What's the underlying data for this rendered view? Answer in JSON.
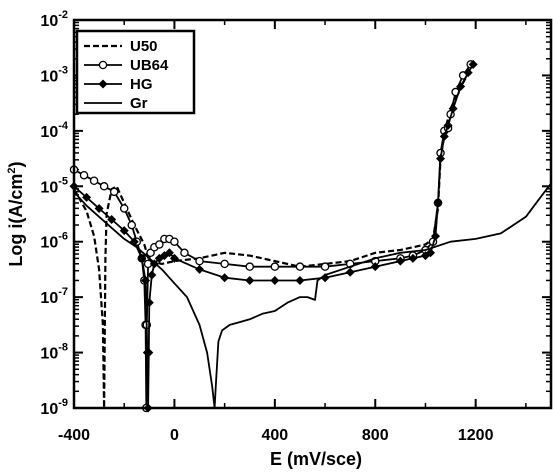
{
  "chart_data": {
    "type": "line",
    "xlabel": "E (mV/sce)",
    "ylabel_base": "Log i(A/cm",
    "ylabel_sup": "2",
    "ylabel_close": ")",
    "xlim": [
      -400,
      1500
    ],
    "ylim": [
      -9,
      -2
    ],
    "y_scale": "log10",
    "x_ticks": [
      -400,
      0,
      400,
      800,
      1200
    ],
    "x_tick_labels": [
      "-400",
      "0",
      "400",
      "800",
      "1200"
    ],
    "y_ticks": [
      -9,
      -8,
      -7,
      -6,
      -5,
      -4,
      -3,
      -2
    ],
    "y_tick_labels": [
      {
        "base": "10",
        "exp": "-9"
      },
      {
        "base": "10",
        "exp": "-8"
      },
      {
        "base": "10",
        "exp": "-7"
      },
      {
        "base": "10",
        "exp": "-6"
      },
      {
        "base": "10",
        "exp": "-5"
      },
      {
        "base": "10",
        "exp": "-4"
      },
      {
        "base": "10",
        "exp": "-3"
      },
      {
        "base": "10",
        "exp": "-2"
      }
    ],
    "grid": false,
    "legend_position": "top-left",
    "series": [
      {
        "name": "U50",
        "style": "dashed",
        "marker": "none",
        "x": [
          -400,
          -350,
          -320,
          -300,
          -285,
          -280,
          -278,
          -275,
          -270,
          -250,
          -230,
          -200,
          -160,
          -120,
          -100,
          -50,
          0,
          100,
          200,
          300,
          400,
          500,
          600,
          700,
          800,
          900,
          950,
          1000,
          1030,
          1050,
          1060,
          1080,
          1100,
          1130,
          1160,
          1190
        ],
        "y": [
          -5.05,
          -5.45,
          -5.9,
          -6.5,
          -7.5,
          -9.0,
          -8.0,
          -6.3,
          -5.5,
          -5.05,
          -5.0,
          -5.3,
          -5.7,
          -6.05,
          -6.35,
          -6.4,
          -6.35,
          -6.3,
          -6.2,
          -6.25,
          -6.35,
          -6.45,
          -6.4,
          -6.35,
          -6.2,
          -6.15,
          -6.1,
          -6.05,
          -5.95,
          -5.4,
          -4.5,
          -3.95,
          -3.6,
          -3.3,
          -3.05,
          -2.8
        ]
      },
      {
        "name": "UB64",
        "style": "solid",
        "marker": "open-circle",
        "x": [
          -400,
          -360,
          -320,
          -280,
          -240,
          -200,
          -170,
          -150,
          -130,
          -120,
          -115,
          -112,
          -110,
          -105,
          -95,
          -80,
          -60,
          -40,
          -20,
          0,
          40,
          100,
          200,
          300,
          400,
          500,
          600,
          700,
          800,
          900,
          950,
          1000,
          1030,
          1050,
          1060,
          1075,
          1090,
          1100,
          1120,
          1150,
          1180
        ],
        "y": [
          -4.7,
          -4.8,
          -4.9,
          -5.0,
          -5.1,
          -5.4,
          -5.7,
          -6.0,
          -6.3,
          -6.7,
          -7.5,
          -9.0,
          -7.5,
          -6.4,
          -6.2,
          -6.1,
          -6.05,
          -5.95,
          -5.95,
          -6.0,
          -6.2,
          -6.35,
          -6.4,
          -6.45,
          -6.45,
          -6.45,
          -6.45,
          -6.4,
          -6.35,
          -6.3,
          -6.25,
          -6.15,
          -6.0,
          -5.3,
          -4.4,
          -4.0,
          -3.95,
          -3.7,
          -3.3,
          -3.0,
          -2.8
        ]
      },
      {
        "name": "HG",
        "style": "solid",
        "marker": "filled-diamond",
        "x": [
          -400,
          -350,
          -300,
          -250,
          -200,
          -160,
          -130,
          -115,
          -108,
          -105,
          -102,
          -100,
          -90,
          -80,
          -60,
          -40,
          -20,
          0,
          100,
          200,
          300,
          400,
          500,
          600,
          700,
          800,
          900,
          950,
          1000,
          1020,
          1040,
          1050,
          1060,
          1075,
          1090,
          1110,
          1140,
          1170,
          1190
        ],
        "y": [
          -5.0,
          -5.2,
          -5.4,
          -5.6,
          -5.8,
          -6.0,
          -6.3,
          -6.7,
          -8.0,
          -9.0,
          -8.0,
          -7.1,
          -6.6,
          -6.4,
          -6.3,
          -6.25,
          -6.2,
          -6.3,
          -6.5,
          -6.65,
          -6.7,
          -6.7,
          -6.7,
          -6.65,
          -6.55,
          -6.45,
          -6.35,
          -6.3,
          -6.25,
          -6.2,
          -5.9,
          -5.3,
          -4.5,
          -4.1,
          -3.9,
          -3.6,
          -3.2,
          -2.95,
          -2.8
        ]
      },
      {
        "name": "Gr",
        "style": "solid",
        "marker": "none",
        "x": [
          -400,
          -350,
          -300,
          -250,
          -200,
          -150,
          -100,
          -50,
          0,
          50,
          100,
          130,
          150,
          160,
          165,
          170,
          175,
          190,
          220,
          260,
          300,
          350,
          400,
          450,
          500,
          530,
          560,
          570,
          600,
          700,
          800,
          900,
          1000,
          1100,
          1200,
          1300,
          1400,
          1450,
          1500
        ],
        "y": [
          -5.1,
          -5.35,
          -5.55,
          -5.75,
          -5.95,
          -6.1,
          -6.3,
          -6.5,
          -6.75,
          -7.0,
          -7.5,
          -8.0,
          -8.6,
          -9.0,
          -8.6,
          -8.2,
          -7.8,
          -7.6,
          -7.5,
          -7.45,
          -7.4,
          -7.3,
          -7.25,
          -7.1,
          -7.0,
          -7.0,
          -7.05,
          -6.7,
          -6.6,
          -6.45,
          -6.3,
          -6.2,
          -6.15,
          -6.0,
          -5.95,
          -5.85,
          -5.55,
          -5.25,
          -4.95
        ]
      }
    ]
  }
}
